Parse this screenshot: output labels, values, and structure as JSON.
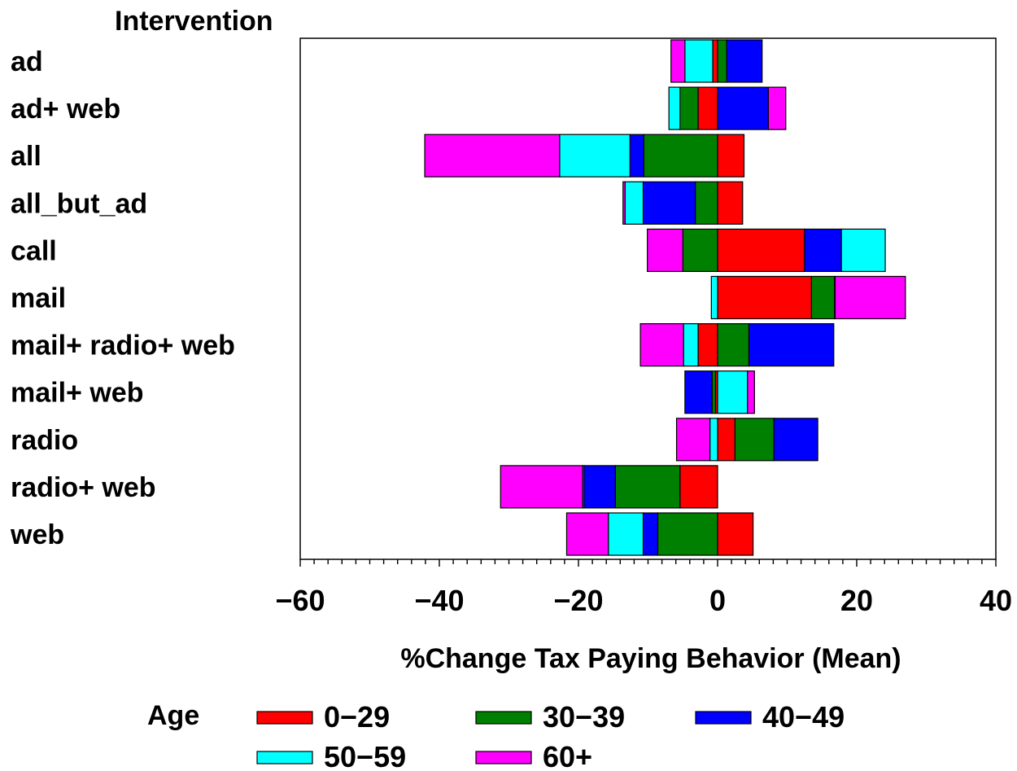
{
  "chart_data": {
    "type": "bar",
    "orientation": "horizontal",
    "stacked": "diverging",
    "category_axis_title": "Intervention",
    "xlabel": "%Change Tax Paying Behavior (Mean)",
    "xlim": [
      -60,
      40
    ],
    "xticks": [
      "−60",
      "−40",
      "−20",
      "0",
      "20",
      "40"
    ],
    "tick_values": [
      -60,
      -40,
      -20,
      0,
      20,
      40
    ],
    "grid": false,
    "legend": {
      "title": "Age",
      "position": "bottom"
    },
    "colors": {
      "0-29": "#ff0000",
      "30-39": "#008000",
      "40-49": "#0000ff",
      "50-59": "#00ffff",
      "60+": "#ff00ff"
    },
    "categories": [
      "ad",
      "ad+ web",
      "all",
      "all_but_ad",
      "call",
      "mail",
      "mail+ radio+ web",
      "mail+ web",
      "radio",
      "radio+ web",
      "web"
    ],
    "series": [
      {
        "name": "0−29",
        "key": "0-29",
        "values": [
          -0.7,
          -2.8,
          3.8,
          3.6,
          12.5,
          13.5,
          -2.8,
          -0.3,
          2.5,
          -5.4,
          5.1
        ]
      },
      {
        "name": "30−39",
        "key": "30-39",
        "values": [
          1.3,
          -2.6,
          -10.6,
          -3.2,
          -5.0,
          3.3,
          4.5,
          -0.5,
          5.6,
          -9.3,
          -8.6
        ]
      },
      {
        "name": "40−49",
        "key": "40-49",
        "values": [
          5.1,
          7.3,
          -2.0,
          -7.5,
          5.3,
          0.1,
          12.2,
          -3.9,
          6.3,
          -4.5,
          -2.1
        ]
      },
      {
        "name": "50−59",
        "key": "50-59",
        "values": [
          -4.0,
          -1.6,
          -10.1,
          -2.6,
          6.3,
          -0.9,
          -2.1,
          4.3,
          -1.1,
          -0.2,
          -5.0
        ]
      },
      {
        "name": "60+",
        "key": "60+",
        "values": [
          -2.0,
          2.5,
          -19.4,
          -0.3,
          -5.1,
          10.1,
          -6.2,
          1.0,
          -4.8,
          -11.8,
          -6.0
        ]
      }
    ]
  }
}
